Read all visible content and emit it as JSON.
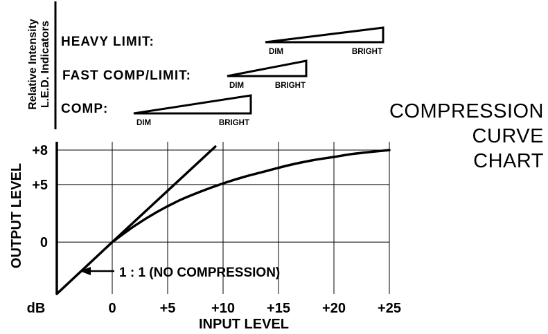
{
  "title": [
    "COMPRESSION",
    "CURVE",
    "CHART"
  ],
  "led_panel": {
    "heading_lines": [
      "Relative Intensity",
      "L.E.D. Indicators"
    ],
    "indicators": [
      {
        "label": "HEAVY LIMIT:",
        "low": "DIM",
        "high": "BRIGHT"
      },
      {
        "label": "FAST COMP/LIMIT:",
        "low": "DIM",
        "high": "BRIGHT"
      },
      {
        "label": "COMP:",
        "low": "DIM",
        "high": "BRIGHT"
      }
    ]
  },
  "chart_data": {
    "type": "line",
    "xlabel": "INPUT LEVEL",
    "ylabel": "OUTPUT LEVEL",
    "unit_label": "dB",
    "x_ticks": [
      0,
      5,
      10,
      15,
      20,
      25
    ],
    "x_tick_labels": [
      "0",
      "+5",
      "+10",
      "+15",
      "+20",
      "+25"
    ],
    "y_ticks": [
      0,
      5,
      8
    ],
    "y_tick_labels": [
      "0",
      "+5",
      "+8"
    ],
    "xlim": [
      -5,
      25
    ],
    "ylim": [
      -4.5,
      8.3
    ],
    "grid": true,
    "annotation": "1 : 1 (NO COMPRESSION)",
    "series": [
      {
        "values": [
          [
            -5,
            -4.5
          ],
          [
            0,
            0
          ],
          [
            9.3,
            8.3
          ]
        ]
      },
      {
        "values": [
          [
            0,
            0
          ],
          [
            2,
            1.4
          ],
          [
            4,
            2.6
          ],
          [
            6,
            3.6
          ],
          [
            8,
            4.4
          ],
          [
            10,
            5.1
          ],
          [
            12,
            5.7
          ],
          [
            14,
            6.2
          ],
          [
            16,
            6.7
          ],
          [
            18,
            7.1
          ],
          [
            20,
            7.4
          ],
          [
            22,
            7.7
          ],
          [
            25,
            8.0
          ]
        ]
      }
    ]
  }
}
